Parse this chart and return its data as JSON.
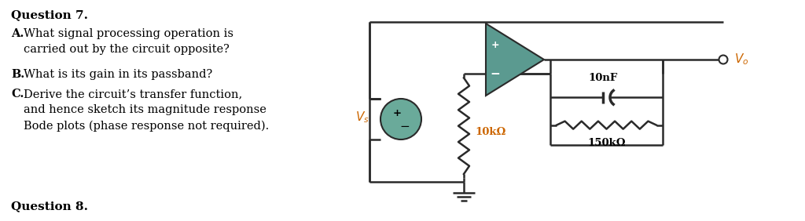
{
  "bg_color": "#ffffff",
  "text_color": "#000000",
  "q7_title": "Question 7.",
  "q7_a_bold": "A.",
  "q7_a_rest": " What signal processing operation is\n carried out by the circuit opposite?",
  "q7_b_bold": "B.",
  "q7_b_rest": " What is its gain in its passband?",
  "q7_c_bold": "C.",
  "q7_c_rest": " Derive the circuit’s transfer function,\n and hence sketch its magnitude response\n Bode plots (phase response not required).",
  "q8_title": "Question 8.",
  "op_amp_color": "#5b9a90",
  "source_color": "#6aaa9a",
  "wire_color": "#2a2a2a",
  "orange_color": "#cc6600",
  "cap_label": "10nF",
  "res1_label": "10kΩ",
  "res2_label": "150kΩ"
}
